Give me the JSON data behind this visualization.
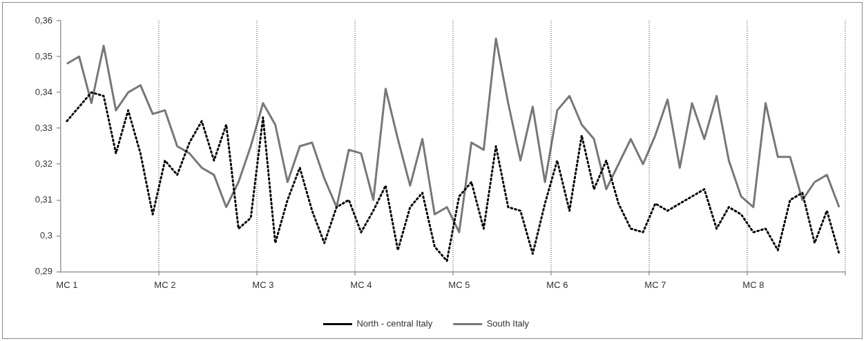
{
  "chart_data": {
    "type": "line",
    "categories": [
      "MC 1",
      null,
      null,
      null,
      null,
      null,
      null,
      null,
      "MC 2",
      null,
      null,
      null,
      null,
      null,
      null,
      null,
      "MC 3",
      null,
      null,
      null,
      null,
      null,
      null,
      null,
      "MC 4",
      null,
      null,
      null,
      null,
      null,
      null,
      null,
      "MC 5",
      null,
      null,
      null,
      null,
      null,
      null,
      null,
      "MC 6",
      null,
      null,
      null,
      null,
      null,
      null,
      null,
      "MC 7",
      null,
      null,
      null,
      null,
      null,
      null,
      null,
      "MC 8",
      null,
      null,
      null,
      null,
      null,
      null,
      null
    ],
    "series": [
      {
        "name": "North - central Italy",
        "color": "#000000",
        "line_style": "dotted",
        "values": [
          0.332,
          0.336,
          0.34,
          0.339,
          0.323,
          0.335,
          0.323,
          0.306,
          0.321,
          0.317,
          0.326,
          0.332,
          0.321,
          0.331,
          0.302,
          0.305,
          0.333,
          0.298,
          0.31,
          0.319,
          0.307,
          0.298,
          0.308,
          0.31,
          0.301,
          0.307,
          0.314,
          0.296,
          0.308,
          0.312,
          0.297,
          0.293,
          0.311,
          0.315,
          0.302,
          0.325,
          0.308,
          0.307,
          0.295,
          0.309,
          0.321,
          0.307,
          0.328,
          0.313,
          0.321,
          0.309,
          0.302,
          0.301,
          0.309,
          0.307,
          0.309,
          0.311,
          0.313,
          0.302,
          0.308,
          0.306,
          0.301,
          0.302,
          0.296,
          0.31,
          0.312,
          0.298,
          0.307,
          0.295
        ]
      },
      {
        "name": "South Italy",
        "color": "#777777",
        "line_style": "solid",
        "values": [
          0.348,
          0.35,
          0.337,
          0.353,
          0.335,
          0.34,
          0.342,
          0.334,
          0.335,
          0.325,
          0.323,
          0.319,
          0.317,
          0.308,
          0.315,
          0.325,
          0.337,
          0.331,
          0.315,
          0.325,
          0.326,
          0.316,
          0.308,
          0.324,
          0.323,
          0.31,
          0.341,
          0.327,
          0.314,
          0.327,
          0.306,
          0.308,
          0.301,
          0.326,
          0.324,
          0.355,
          0.337,
          0.321,
          0.336,
          0.315,
          0.335,
          0.339,
          0.331,
          0.327,
          0.313,
          0.32,
          0.327,
          0.32,
          0.328,
          0.338,
          0.319,
          0.337,
          0.327,
          0.339,
          0.321,
          0.311,
          0.308,
          0.337,
          0.322,
          0.322,
          0.31,
          0.315,
          0.317,
          0.308
        ]
      }
    ],
    "ylim": [
      0.29,
      0.36
    ],
    "yticks": [
      {
        "value": 0.29,
        "label": "0,29"
      },
      {
        "value": 0.3,
        "label": "0,3"
      },
      {
        "value": 0.31,
        "label": "0,31"
      },
      {
        "value": 0.32,
        "label": "0,32"
      },
      {
        "value": 0.33,
        "label": "0,33"
      },
      {
        "value": 0.34,
        "label": "0,34"
      },
      {
        "value": 0.35,
        "label": "0,35"
      },
      {
        "value": 0.36,
        "label": "0,36"
      }
    ],
    "grid": "x",
    "legend": "bottom",
    "marker": "none"
  }
}
